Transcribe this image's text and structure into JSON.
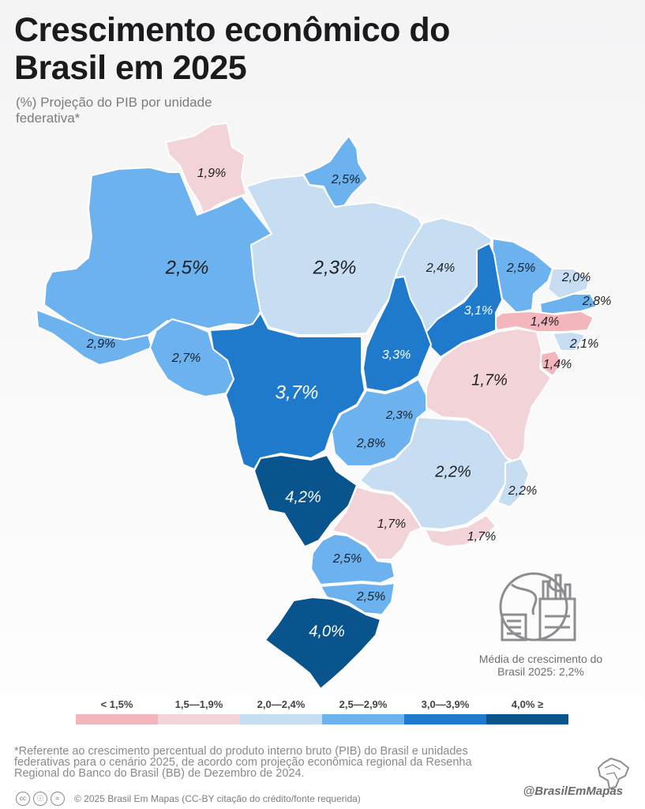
{
  "header": {
    "title": "Crescimento econômico do Brasil em 2025",
    "subtitle": "(%) Projeção do PIB por unidade federativa*"
  },
  "map_data": {
    "colors": {
      "<1.5": "#f4b6bd",
      "1.5-1.9": "#f2d4d8",
      "2.0-2.4": "#c7def2",
      "2.5-2.9": "#6cb2ee",
      "3.0-3.9": "#1f7acc",
      "4.0+": "#0a548e"
    },
    "states": [
      {
        "key": "rr",
        "value": "1,9%",
        "class": "1.5-1.9"
      },
      {
        "key": "ap",
        "value": "2,5%",
        "class": "2.5-2.9"
      },
      {
        "key": "am",
        "value": "2,5%",
        "class": "2.5-2.9"
      },
      {
        "key": "pa",
        "value": "2,3%",
        "class": "2.0-2.4"
      },
      {
        "key": "ma",
        "value": "2,4%",
        "class": "2.0-2.4"
      },
      {
        "key": "ce",
        "value": "2,5%",
        "class": "2.5-2.9"
      },
      {
        "key": "rn",
        "value": "2,0%",
        "class": "2.0-2.4"
      },
      {
        "key": "pb",
        "value": "2,8%",
        "class": "2.5-2.9"
      },
      {
        "key": "pe",
        "value": "1,4%",
        "class": "<1.5"
      },
      {
        "key": "al",
        "value": "2,1%",
        "class": "2.0-2.4"
      },
      {
        "key": "se",
        "value": "1,4%",
        "class": "<1.5"
      },
      {
        "key": "pi",
        "value": "3,1%",
        "class": "3.0-3.9"
      },
      {
        "key": "to",
        "value": "3,3%",
        "class": "3.0-3.9"
      },
      {
        "key": "ac",
        "value": "2,9%",
        "class": "2.5-2.9"
      },
      {
        "key": "ro",
        "value": "2,7%",
        "class": "2.5-2.9"
      },
      {
        "key": "mt",
        "value": "3,7%",
        "class": "3.0-3.9"
      },
      {
        "key": "ba",
        "value": "1,7%",
        "class": "1.5-1.9"
      },
      {
        "key": "df",
        "value": "2,3%",
        "class": "2.0-2.4"
      },
      {
        "key": "go",
        "value": "2,8%",
        "class": "2.5-2.9"
      },
      {
        "key": "mg",
        "value": "2,2%",
        "class": "2.0-2.4"
      },
      {
        "key": "es",
        "value": "2,2%",
        "class": "2.0-2.4"
      },
      {
        "key": "ms",
        "value": "4,2%",
        "class": "4.0+"
      },
      {
        "key": "sp",
        "value": "1,7%",
        "class": "1.5-1.9"
      },
      {
        "key": "rj",
        "value": "1,7%",
        "class": "1.5-1.9"
      },
      {
        "key": "pr",
        "value": "2,5%",
        "class": "2.5-2.9"
      },
      {
        "key": "sc",
        "value": "2,5%",
        "class": "2.5-2.9"
      },
      {
        "key": "rs",
        "value": "4,0%",
        "class": "4.0+"
      }
    ]
  },
  "average": {
    "label": "Média de crescimento do Brasil 2025: 2,2%"
  },
  "legend": [
    {
      "label": "< 1,5%",
      "color": "#f4b6bd"
    },
    {
      "label": "1,5—1,9%",
      "color": "#f2d4d8"
    },
    {
      "label": "2,0—2,4%",
      "color": "#c7def2"
    },
    {
      "label": "2,5—2,9%",
      "color": "#6cb2ee"
    },
    {
      "label": "3,0—3,9%",
      "color": "#1f7acc"
    },
    {
      "label": "4,0% ≥",
      "color": "#0a548e"
    }
  ],
  "footer": {
    "note": "*Referente ao crescimento percentual do produto interno bruto (PIB) do Brasil e unidades federativas para o cenário 2025, de acordo com projeção econômica regional da Resenha Regional do Banco do Brasil (BB) de Dezembro de 2024.",
    "copyright": "© 2025  Brasil Em Mapas (CC-BY citação do crédito/fonte requerida)",
    "handle": "@BrasilEmMapas",
    "cc_icons": [
      "cc-icon",
      "attribution-icon",
      "equals-icon"
    ]
  }
}
